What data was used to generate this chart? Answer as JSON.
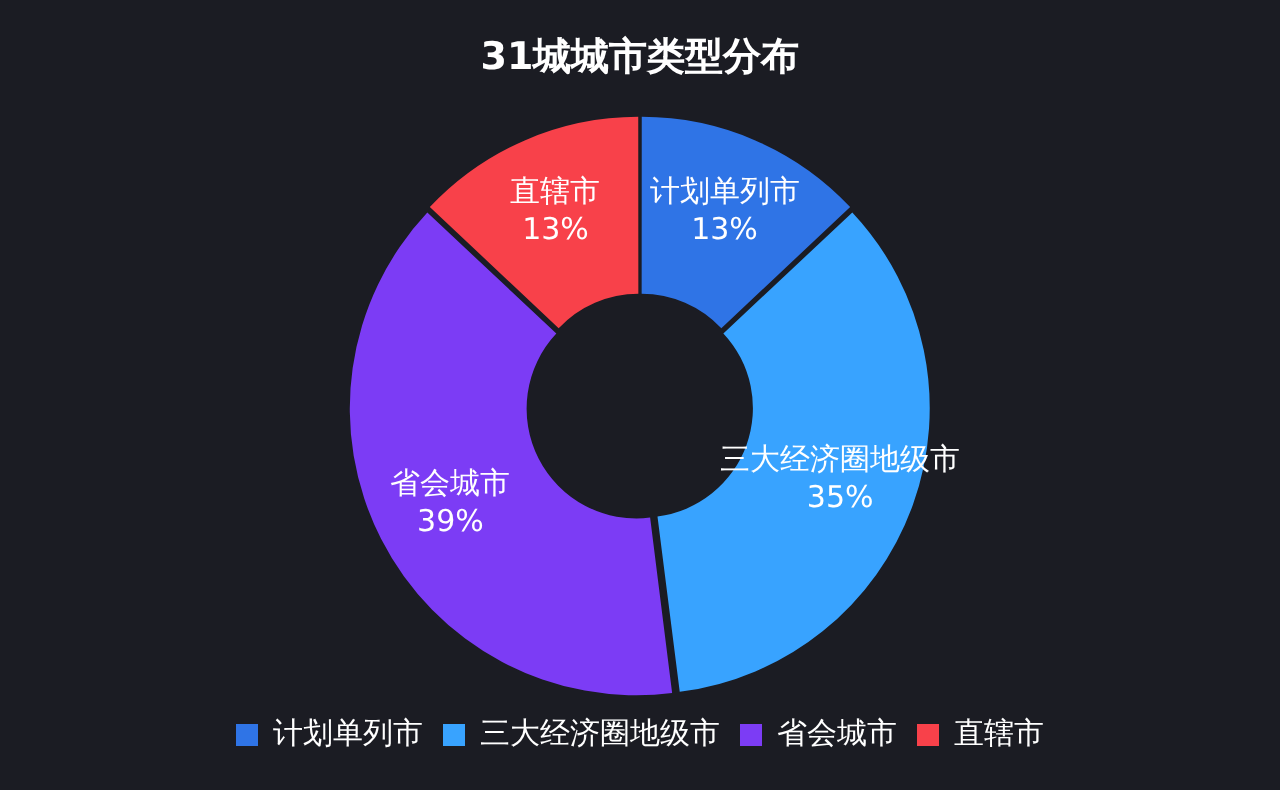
{
  "chart_data": {
    "type": "donut",
    "title": "31城城市类型分布",
    "categories": [
      "计划单列市",
      "三大经济圈地级市",
      "省会城市",
      "直辖市"
    ],
    "values": [
      13,
      35,
      39,
      13
    ],
    "value_labels": [
      "13%",
      "35%",
      "39%",
      "13%"
    ],
    "colors": [
      "#2f74e6",
      "#38a3ff",
      "#7c3cf5",
      "#f8414a"
    ],
    "legend": "bottom"
  }
}
